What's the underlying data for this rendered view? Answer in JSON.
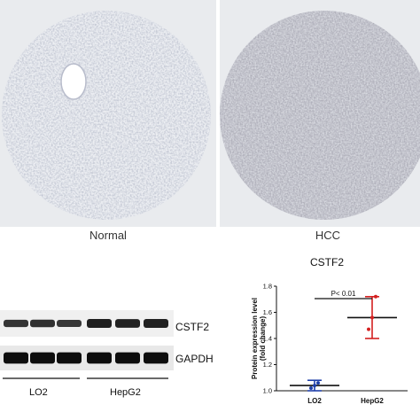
{
  "panels": {
    "left_label": "Normal",
    "right_label": "HCC"
  },
  "blot": {
    "target_label": "CSTF2",
    "loading_label": "GAPDH",
    "groups": [
      "LO2",
      "HepG2"
    ],
    "target_intensity": [
      0.55,
      0.6,
      0.5,
      0.85,
      0.8,
      0.82
    ],
    "loading_intensity": [
      0.95,
      0.95,
      0.95,
      0.95,
      0.95,
      0.95
    ]
  },
  "chart_data": {
    "type": "scatter",
    "title": "CSTF2",
    "ylabel": "Protein expression level (fold change)",
    "categories": [
      "LO2",
      "HepG2"
    ],
    "ylim": [
      1.0,
      1.8
    ],
    "yticks": [
      1.0,
      1.2,
      1.4,
      1.6,
      1.8
    ],
    "tick_labels": [
      "1.0",
      "1.2",
      "1.4",
      "1.6",
      "1.8"
    ],
    "series": [
      {
        "category": "LO2",
        "mean": 1.04,
        "sd": 0.04,
        "points": [
          1.02,
          1.04,
          1.06
        ],
        "color": "#1f3fa8"
      },
      {
        "category": "HepG2",
        "mean": 1.56,
        "sd": 0.16,
        "points": [
          1.47,
          1.56,
          1.72
        ],
        "color": "#d42020"
      }
    ],
    "significance": "P< 0.01"
  }
}
